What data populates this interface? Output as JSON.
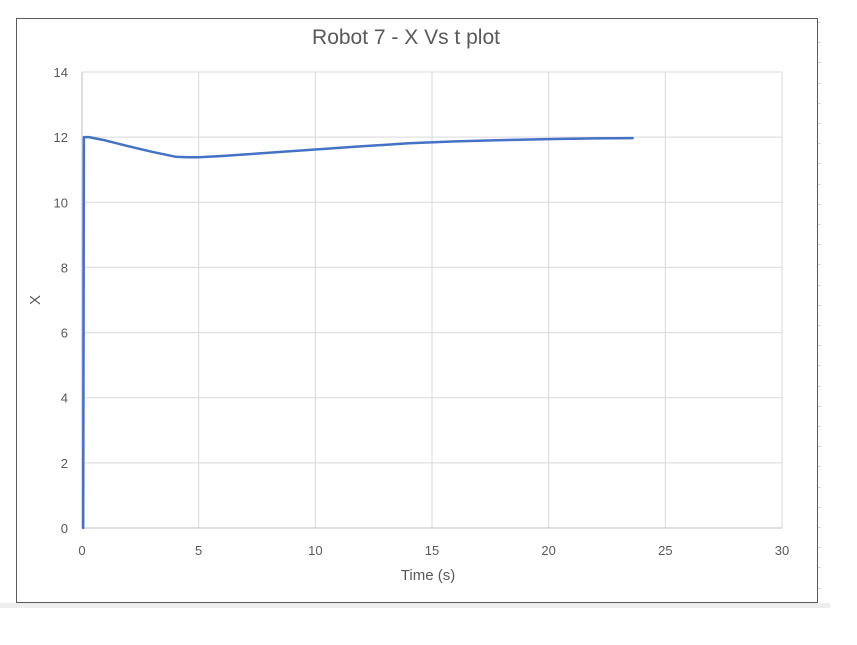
{
  "chart_data": {
    "type": "line",
    "title": "Robot 7 - X Vs t plot",
    "xlabel": "Time (s)",
    "ylabel": "X",
    "xlim": [
      0,
      30
    ],
    "ylim": [
      0,
      14
    ],
    "xticks": [
      0,
      5,
      10,
      15,
      20,
      25,
      30
    ],
    "yticks": [
      0,
      2,
      4,
      6,
      8,
      10,
      12,
      14
    ],
    "grid": true,
    "legend": "none",
    "color": "#4472c4",
    "series": [
      {
        "x": [
          0.05,
          0.08,
          0.3,
          1,
          2,
          3,
          4,
          4.5,
          5,
          6,
          8,
          10,
          12,
          14,
          16,
          18,
          20,
          22,
          23.6
        ],
        "y": [
          0,
          12.0,
          12.0,
          11.9,
          11.72,
          11.55,
          11.4,
          11.38,
          11.38,
          11.42,
          11.52,
          11.62,
          11.72,
          11.81,
          11.87,
          11.91,
          11.94,
          11.96,
          11.97
        ]
      }
    ]
  }
}
